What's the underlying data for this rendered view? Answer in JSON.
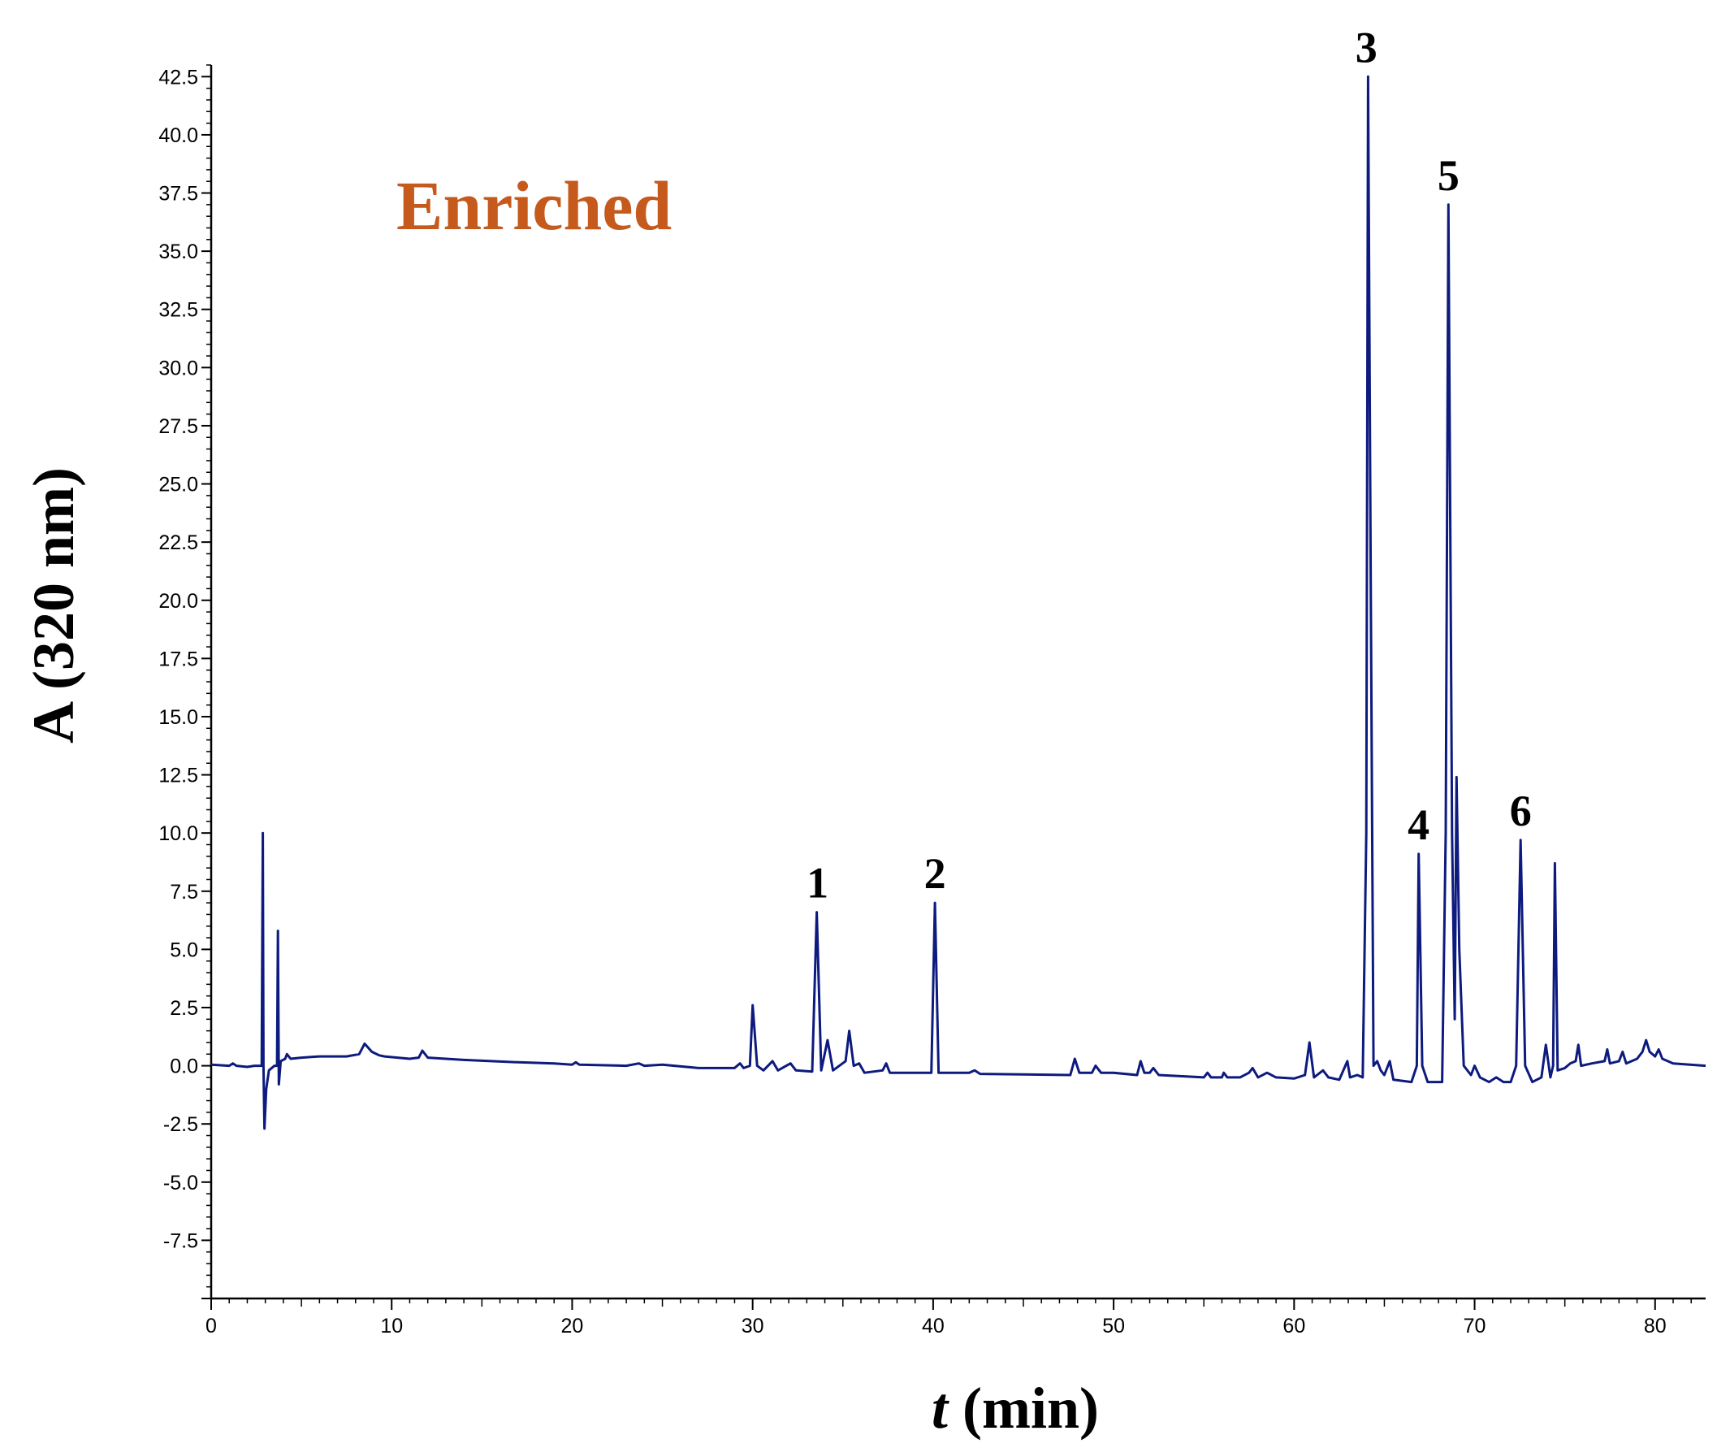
{
  "chart_data": {
    "type": "line",
    "title": "Enriched",
    "title_color": "#c55a1c",
    "line_color": "#0d1a7e",
    "xlabel_italic": "t",
    "xlabel_rest": "(min)",
    "ylabel": "A (320 nm)",
    "xlim": [
      0,
      82.8
    ],
    "ylim": [
      -10.0,
      43.0
    ],
    "x_ticks": [
      0,
      10,
      20,
      30,
      40,
      50,
      60,
      70,
      80
    ],
    "y_ticks": [
      -7.5,
      -5.0,
      -2.5,
      0.0,
      2.5,
      5.0,
      7.5,
      10.0,
      12.5,
      15.0,
      17.5,
      20.0,
      22.5,
      25.0,
      27.5,
      30.0,
      32.5,
      35.0,
      37.5,
      40.0,
      42.5
    ],
    "y_tick_labels": [
      "-7.5",
      "-5.0",
      "-2.5",
      "0.0",
      "2.5",
      "5.0",
      "7.5",
      "10.0",
      "12.5",
      "15.0",
      "17.5",
      "20.0",
      "22.5",
      "25.0",
      "27.5",
      "30.0",
      "32.5",
      "35.0",
      "37.5",
      "40.0",
      "42.5"
    ],
    "grid": false,
    "series": [
      {
        "values": [
          [
            0.0,
            0.05
          ],
          [
            1.0,
            0.0
          ],
          [
            1.2,
            0.1
          ],
          [
            1.4,
            0.0
          ],
          [
            2.0,
            -0.05
          ],
          [
            2.4,
            0.0
          ],
          [
            2.8,
            0.0
          ],
          [
            2.86,
            10.0
          ],
          [
            2.9,
            0.0
          ],
          [
            2.95,
            -2.7
          ],
          [
            3.05,
            -1.0
          ],
          [
            3.2,
            -0.2
          ],
          [
            3.5,
            0.0
          ],
          [
            3.65,
            0.0
          ],
          [
            3.7,
            5.8
          ],
          [
            3.75,
            -0.8
          ],
          [
            3.85,
            0.2
          ],
          [
            4.1,
            0.3
          ],
          [
            4.2,
            0.5
          ],
          [
            4.4,
            0.3
          ],
          [
            5.0,
            0.35
          ],
          [
            6.0,
            0.4
          ],
          [
            7.5,
            0.4
          ],
          [
            8.2,
            0.5
          ],
          [
            8.5,
            0.95
          ],
          [
            8.9,
            0.6
          ],
          [
            9.3,
            0.45
          ],
          [
            9.6,
            0.4
          ],
          [
            11.0,
            0.3
          ],
          [
            11.5,
            0.35
          ],
          [
            11.7,
            0.65
          ],
          [
            12.0,
            0.35
          ],
          [
            14.0,
            0.25
          ],
          [
            17.0,
            0.15
          ],
          [
            19.0,
            0.1
          ],
          [
            20.0,
            0.05
          ],
          [
            20.2,
            0.15
          ],
          [
            20.4,
            0.05
          ],
          [
            23.0,
            0.0
          ],
          [
            23.7,
            0.1
          ],
          [
            24.0,
            0.0
          ],
          [
            25.0,
            0.05
          ],
          [
            27.0,
            -0.1
          ],
          [
            29.0,
            -0.1
          ],
          [
            29.3,
            0.1
          ],
          [
            29.5,
            -0.1
          ],
          [
            29.85,
            0.0
          ],
          [
            30.0,
            2.6
          ],
          [
            30.25,
            0.0
          ],
          [
            30.6,
            -0.2
          ],
          [
            31.1,
            0.2
          ],
          [
            31.4,
            -0.2
          ],
          [
            32.1,
            0.1
          ],
          [
            32.4,
            -0.2
          ],
          [
            33.3,
            -0.25
          ],
          [
            33.55,
            6.6
          ],
          [
            33.8,
            -0.2
          ],
          [
            34.15,
            1.1
          ],
          [
            34.45,
            -0.2
          ],
          [
            35.15,
            0.2
          ],
          [
            35.35,
            1.5
          ],
          [
            35.6,
            0.0
          ],
          [
            35.9,
            0.1
          ],
          [
            36.2,
            -0.3
          ],
          [
            37.2,
            -0.2
          ],
          [
            37.4,
            0.1
          ],
          [
            37.6,
            -0.3
          ],
          [
            39.0,
            -0.3
          ],
          [
            39.9,
            -0.3
          ],
          [
            40.1,
            7.0
          ],
          [
            40.3,
            -0.3
          ],
          [
            42.0,
            -0.3
          ],
          [
            42.3,
            -0.2
          ],
          [
            42.6,
            -0.35
          ],
          [
            47.6,
            -0.4
          ],
          [
            47.85,
            0.3
          ],
          [
            48.1,
            -0.3
          ],
          [
            48.8,
            -0.3
          ],
          [
            49.0,
            0.0
          ],
          [
            49.3,
            -0.3
          ],
          [
            50.0,
            -0.3
          ],
          [
            51.3,
            -0.4
          ],
          [
            51.5,
            0.2
          ],
          [
            51.7,
            -0.3
          ],
          [
            52.0,
            -0.3
          ],
          [
            52.2,
            -0.1
          ],
          [
            52.5,
            -0.4
          ],
          [
            55.0,
            -0.5
          ],
          [
            55.2,
            -0.3
          ],
          [
            55.4,
            -0.5
          ],
          [
            56.0,
            -0.5
          ],
          [
            56.1,
            -0.3
          ],
          [
            56.3,
            -0.5
          ],
          [
            57.0,
            -0.5
          ],
          [
            57.5,
            -0.3
          ],
          [
            57.7,
            -0.1
          ],
          [
            58.0,
            -0.5
          ],
          [
            58.5,
            -0.3
          ],
          [
            59.0,
            -0.5
          ],
          [
            60.0,
            -0.55
          ],
          [
            60.6,
            -0.4
          ],
          [
            60.85,
            1.0
          ],
          [
            61.1,
            -0.5
          ],
          [
            61.6,
            -0.2
          ],
          [
            61.9,
            -0.5
          ],
          [
            62.5,
            -0.6
          ],
          [
            62.95,
            0.2
          ],
          [
            63.1,
            -0.5
          ],
          [
            63.5,
            -0.4
          ],
          [
            63.8,
            -0.5
          ],
          [
            64.0,
            10.0
          ],
          [
            64.1,
            42.5
          ],
          [
            64.25,
            20.0
          ],
          [
            64.4,
            0.0
          ],
          [
            64.6,
            0.2
          ],
          [
            64.8,
            -0.2
          ],
          [
            65.0,
            -0.4
          ],
          [
            65.3,
            0.2
          ],
          [
            65.5,
            -0.6
          ],
          [
            66.5,
            -0.7
          ],
          [
            66.8,
            0.0
          ],
          [
            66.9,
            9.1
          ],
          [
            67.1,
            0.0
          ],
          [
            67.4,
            -0.7
          ],
          [
            68.2,
            -0.7
          ],
          [
            68.4,
            10.0
          ],
          [
            68.55,
            37.0
          ],
          [
            68.75,
            10.0
          ],
          [
            68.9,
            2.0
          ],
          [
            69.0,
            12.4
          ],
          [
            69.15,
            5.0
          ],
          [
            69.4,
            0.0
          ],
          [
            69.8,
            -0.4
          ],
          [
            70.0,
            0.0
          ],
          [
            70.3,
            -0.5
          ],
          [
            70.8,
            -0.7
          ],
          [
            71.2,
            -0.5
          ],
          [
            71.6,
            -0.7
          ],
          [
            72.0,
            -0.7
          ],
          [
            72.3,
            0.0
          ],
          [
            72.55,
            9.7
          ],
          [
            72.8,
            0.0
          ],
          [
            73.2,
            -0.7
          ],
          [
            73.7,
            -0.5
          ],
          [
            73.95,
            0.9
          ],
          [
            74.2,
            -0.5
          ],
          [
            74.35,
            0.0
          ],
          [
            74.45,
            8.7
          ],
          [
            74.6,
            -0.2
          ],
          [
            75.0,
            -0.1
          ],
          [
            75.3,
            0.1
          ],
          [
            75.6,
            0.2
          ],
          [
            75.75,
            0.9
          ],
          [
            75.9,
            0.0
          ],
          [
            76.5,
            0.1
          ],
          [
            77.2,
            0.2
          ],
          [
            77.35,
            0.7
          ],
          [
            77.5,
            0.1
          ],
          [
            78.0,
            0.2
          ],
          [
            78.2,
            0.6
          ],
          [
            78.4,
            0.1
          ],
          [
            79.0,
            0.3
          ],
          [
            79.3,
            0.6
          ],
          [
            79.5,
            1.1
          ],
          [
            79.7,
            0.6
          ],
          [
            80.0,
            0.4
          ],
          [
            80.2,
            0.7
          ],
          [
            80.4,
            0.3
          ],
          [
            81.0,
            0.1
          ],
          [
            82.8,
            0.0
          ]
        ]
      }
    ],
    "peak_labels": [
      {
        "text": "1",
        "x": 33.6,
        "y": 6.6
      },
      {
        "text": "2",
        "x": 40.1,
        "y": 7.0
      },
      {
        "text": "3",
        "x": 64.0,
        "y": 42.5
      },
      {
        "text": "4",
        "x": 66.9,
        "y": 9.1
      },
      {
        "text": "5",
        "x": 68.55,
        "y": 37.0
      },
      {
        "text": "6",
        "x": 72.55,
        "y": 9.7
      }
    ]
  }
}
